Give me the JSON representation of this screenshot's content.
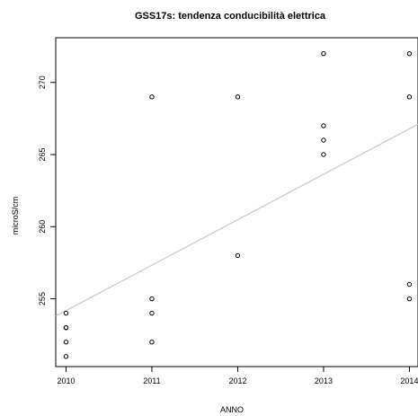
{
  "chart_data": {
    "type": "scatter",
    "title": "GSS17s: tendenza conducibilità elettrica",
    "xlabel": "ANNO",
    "ylabel": "microS/cm",
    "xlim": [
      2009.88,
      2014.1
    ],
    "ylim": [
      250.3,
      273.1
    ],
    "x_ticks": [
      {
        "value": 2010,
        "label": "2010"
      },
      {
        "value": 2011,
        "label": "2011"
      },
      {
        "value": 2012,
        "label": "2012"
      },
      {
        "value": 2013,
        "label": "2013"
      },
      {
        "value": 2014,
        "label": "2014"
      }
    ],
    "y_ticks": [
      {
        "value": 255,
        "label": "255"
      },
      {
        "value": 260,
        "label": "260"
      },
      {
        "value": 265,
        "label": "265"
      },
      {
        "value": 270,
        "label": "270"
      }
    ],
    "points": [
      {
        "x": 2010,
        "y": 254
      },
      {
        "x": 2010,
        "y": 253
      },
      {
        "x": 2010,
        "y": 253
      },
      {
        "x": 2010,
        "y": 252
      },
      {
        "x": 2010,
        "y": 251
      },
      {
        "x": 2011,
        "y": 269
      },
      {
        "x": 2011,
        "y": 255
      },
      {
        "x": 2011,
        "y": 254
      },
      {
        "x": 2011,
        "y": 252
      },
      {
        "x": 2012,
        "y": 269
      },
      {
        "x": 2012,
        "y": 258
      },
      {
        "x": 2013,
        "y": 272
      },
      {
        "x": 2013,
        "y": 267
      },
      {
        "x": 2013,
        "y": 266
      },
      {
        "x": 2013,
        "y": 265
      },
      {
        "x": 2014,
        "y": 272
      },
      {
        "x": 2014,
        "y": 269
      },
      {
        "x": 2014,
        "y": 256
      },
      {
        "x": 2014,
        "y": 255
      }
    ],
    "trendline": {
      "x": [
        2009.88,
        2014.1
      ],
      "y": [
        253.8,
        267.1
      ]
    },
    "grid": false,
    "legend": "none",
    "point_color": "#000000",
    "trend_color": "#c8c8c8"
  }
}
